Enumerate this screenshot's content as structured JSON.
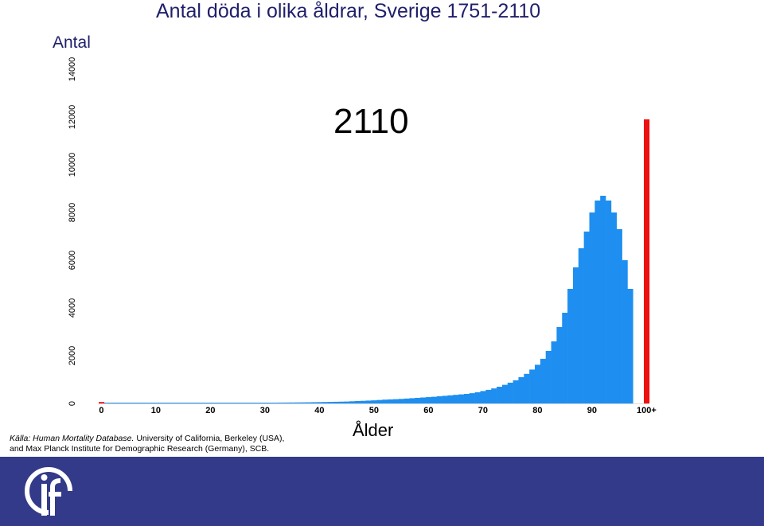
{
  "title": "Antal döda i olika åldrar, Sverige 1751-2110",
  "year_label": "2110",
  "source": {
    "italic": "Källa: Human Mortality Database.",
    "rest": " University of California, Berkeley (USA), and Max Planck Institute for Demographic Research (Germany), SCB."
  },
  "colors": {
    "bars": "#1e8ff0",
    "highlight": "#ee1111",
    "footer": "#343a8a",
    "text": "#1f1f6b"
  },
  "chart_data": {
    "type": "bar",
    "title": "Antal döda i olika åldrar, Sverige 1751-2110",
    "xlabel": "Ålder",
    "ylabel": "Antal",
    "ylim": [
      0,
      14000
    ],
    "yticks": [
      0,
      2000,
      4000,
      6000,
      8000,
      10000,
      12000,
      14000
    ],
    "xtick_labels": [
      "0",
      "10",
      "20",
      "30",
      "40",
      "50",
      "60",
      "70",
      "80",
      "90",
      "100+"
    ],
    "highlight_color": "#ee1111",
    "bar_color": "#1e8ff0",
    "categories": [
      "0",
      "1",
      "2",
      "3",
      "4",
      "5",
      "6",
      "7",
      "8",
      "9",
      "10",
      "11",
      "12",
      "13",
      "14",
      "15",
      "16",
      "17",
      "18",
      "19",
      "20",
      "21",
      "22",
      "23",
      "24",
      "25",
      "26",
      "27",
      "28",
      "29",
      "30",
      "31",
      "32",
      "33",
      "34",
      "35",
      "36",
      "37",
      "38",
      "39",
      "40",
      "41",
      "42",
      "43",
      "44",
      "45",
      "46",
      "47",
      "48",
      "49",
      "50",
      "51",
      "52",
      "53",
      "54",
      "55",
      "56",
      "57",
      "58",
      "59",
      "60",
      "61",
      "62",
      "63",
      "64",
      "65",
      "66",
      "67",
      "68",
      "69",
      "70",
      "71",
      "72",
      "73",
      "74",
      "75",
      "76",
      "77",
      "78",
      "79",
      "80",
      "81",
      "82",
      "83",
      "84",
      "85",
      "86",
      "87",
      "88",
      "89",
      "90",
      "91",
      "92",
      "93",
      "94",
      "95",
      "96",
      "97",
      "98",
      "99",
      "100+"
    ],
    "values": [
      60,
      6,
      5,
      5,
      5,
      5,
      5,
      5,
      5,
      5,
      5,
      5,
      6,
      6,
      8,
      10,
      12,
      15,
      18,
      20,
      22,
      22,
      23,
      24,
      24,
      25,
      26,
      27,
      28,
      29,
      30,
      32,
      34,
      36,
      38,
      40,
      42,
      45,
      48,
      52,
      55,
      60,
      65,
      70,
      75,
      80,
      90,
      100,
      110,
      120,
      130,
      145,
      160,
      170,
      180,
      190,
      205,
      220,
      235,
      250,
      265,
      280,
      300,
      320,
      340,
      360,
      380,
      400,
      430,
      470,
      520,
      570,
      630,
      700,
      780,
      870,
      970,
      1100,
      1240,
      1420,
      1620,
      1870,
      2200,
      2600,
      3200,
      3800,
      4800,
      5700,
      6500,
      7200,
      8000,
      8500,
      8700,
      8500,
      8000,
      7300,
      6000,
      4800,
      0,
      0,
      11900
    ],
    "highlighted": [
      "0",
      "100+"
    ]
  }
}
